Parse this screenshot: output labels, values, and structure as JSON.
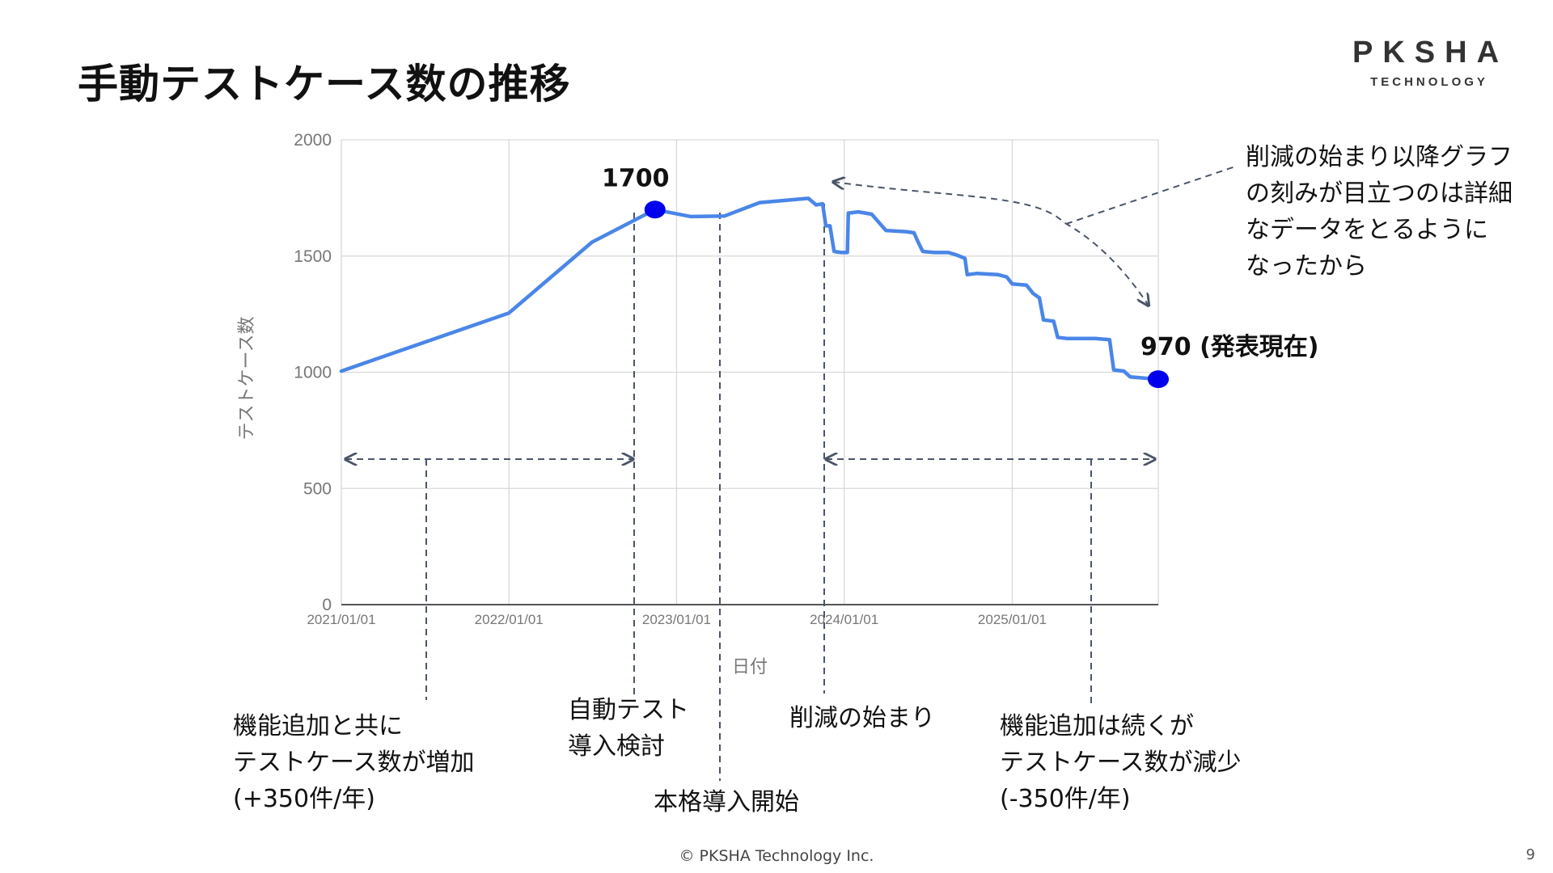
{
  "slide": {
    "title": "手動テストケース数の推移",
    "footer": "© PKSHA Technology Inc.",
    "page_number": "9",
    "logo": {
      "main": "PKSHA",
      "sub": "TECHNOLOGY"
    }
  },
  "colors": {
    "line": "#4a86e8",
    "marker": "#0000ee",
    "grid": "#d9d9d9",
    "axis_text": "#777777",
    "annotation": "#4a5568"
  },
  "chart_data": {
    "type": "line",
    "title": "",
    "xlabel": "日付",
    "ylabel": "テストケース数",
    "ylim": [
      0,
      2000
    ],
    "yticks": [
      0,
      500,
      1000,
      1500,
      2000
    ],
    "xlim": [
      "2021/01/01",
      "2025/11/15"
    ],
    "xticks": [
      "2021/01/01",
      "2022/01/01",
      "2023/01/01",
      "2024/01/01",
      "2025/01/01"
    ],
    "grid": true,
    "series": [
      {
        "points": [
          [
            "2021/01/01",
            1005
          ],
          [
            "2022/01/01",
            1255
          ],
          [
            "2022/07/01",
            1560
          ],
          [
            "2022/11/15",
            1700
          ],
          [
            "2023/02/01",
            1670
          ],
          [
            "2023/04/15",
            1672
          ],
          [
            "2023/07/01",
            1730
          ],
          [
            "2023/10/15",
            1748
          ],
          [
            "2023/11/01",
            1720
          ],
          [
            "2023/11/15",
            1725
          ],
          [
            "2023/11/22",
            1630
          ],
          [
            "2023/12/01",
            1630
          ],
          [
            "2023/12/10",
            1520
          ],
          [
            "2023/12/25",
            1515
          ],
          [
            "2024/01/08",
            1515
          ],
          [
            "2024/01/10",
            1685
          ],
          [
            "2024/02/01",
            1690
          ],
          [
            "2024/03/01",
            1680
          ],
          [
            "2024/03/10",
            1660
          ],
          [
            "2024/04/01",
            1610
          ],
          [
            "2024/05/15",
            1605
          ],
          [
            "2024/06/01",
            1600
          ],
          [
            "2024/06/10",
            1560
          ],
          [
            "2024/06/20",
            1520
          ],
          [
            "2024/07/15",
            1515
          ],
          [
            "2024/08/15",
            1515
          ],
          [
            "2024/09/01",
            1505
          ],
          [
            "2024/09/20",
            1490
          ],
          [
            "2024/09/25",
            1420
          ],
          [
            "2024/10/15",
            1425
          ],
          [
            "2024/12/01",
            1420
          ],
          [
            "2024/12/20",
            1410
          ],
          [
            "2025/01/01",
            1380
          ],
          [
            "2025/02/01",
            1375
          ],
          [
            "2025/02/15",
            1340
          ],
          [
            "2025/03/01",
            1320
          ],
          [
            "2025/03/10",
            1225
          ],
          [
            "2025/04/01",
            1220
          ],
          [
            "2025/04/10",
            1150
          ],
          [
            "2025/05/01",
            1145
          ],
          [
            "2025/07/01",
            1145
          ],
          [
            "2025/08/01",
            1140
          ],
          [
            "2025/08/10",
            1010
          ],
          [
            "2025/09/01",
            1005
          ],
          [
            "2025/09/15",
            980
          ],
          [
            "2025/10/15",
            975
          ],
          [
            "2025/11/15",
            970
          ]
        ]
      }
    ],
    "highlight_points": [
      {
        "x": "2022/11/15",
        "y": 1700,
        "label": "1700"
      },
      {
        "x": "2025/11/15",
        "y": 970,
        "label": "970 (発表現在)"
      }
    ]
  },
  "annotations": {
    "growth": "機能追加と共に\nテストケース数が増加\n(+350件/年)",
    "auto_test": "自動テスト\n導入検討",
    "full_adoption": "本格導入開始",
    "reduction_start": "削減の始まり",
    "decline": "機能追加は続くが\nテストケース数が減少\n(-350件/年)",
    "callout": "削減の始まり以降グラフ\nの刻みが目立つのは詳細\nなデータをとるように\nなったから"
  }
}
